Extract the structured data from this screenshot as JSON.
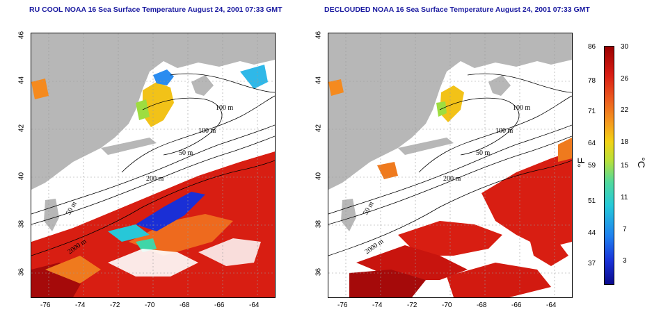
{
  "titles": {
    "left": "RU COOL NOAA 16 Sea Surface Temperature August 24, 2001 07:33 GMT",
    "right": "DECLOUDED NOAA 16 Sea Surface Temperature August 24, 2001 07:33 GMT"
  },
  "axes": {
    "x_ticks": [
      "-76",
      "-74",
      "-72",
      "-70",
      "-68",
      "-66",
      "-64"
    ],
    "y_ticks": [
      "46",
      "44",
      "42",
      "40",
      "38",
      "36"
    ],
    "lon_range": [
      -77,
      -63
    ],
    "lat_range": [
      35,
      46
    ]
  },
  "contours": {
    "labels": [
      "100 m",
      "100 m",
      "50 m",
      "200 m",
      "50 m",
      "2000 m"
    ]
  },
  "colorbar": {
    "fahrenheit_labels": [
      "86",
      "78",
      "71",
      "64",
      "59",
      "51",
      "44",
      "37"
    ],
    "celsius_labels": [
      "30",
      "26",
      "22",
      "18",
      "15",
      "11",
      "7",
      "3"
    ],
    "fahrenheit_unit": "°F",
    "celsius_unit": "°C",
    "range_c": [
      0,
      30
    ],
    "colors": [
      "#0a0a8c",
      "#1a33d9",
      "#1f7fef",
      "#25c9d9",
      "#52d99c",
      "#b8e03a",
      "#f2d215",
      "#f59a1e",
      "#ec5a1f",
      "#d91d14",
      "#9a0000"
    ]
  },
  "colors": {
    "land": "#b7b7b7",
    "title": "#1a1aa0",
    "cloud": "#ffffff",
    "warm": "#d81e12",
    "deep_red": "#a50a0a",
    "cold": "#1a2fd6"
  }
}
